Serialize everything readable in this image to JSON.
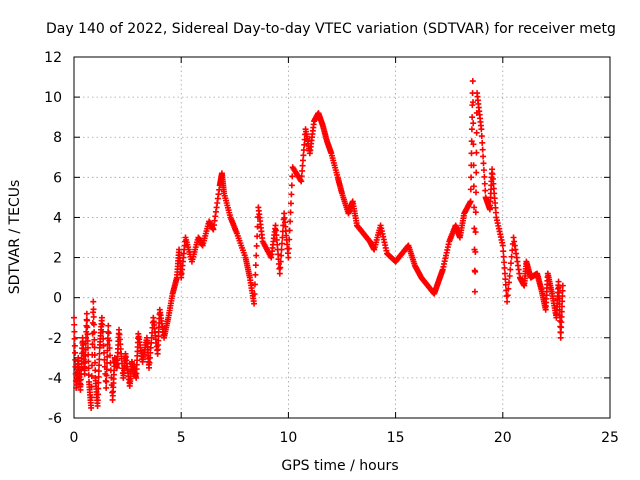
{
  "chart_data": {
    "type": "scatter",
    "title": "Day 140 of 2022, Sidereal Day-to-day VTEC variation (SDTVAR) for receiver metg",
    "xlabel": "GPS time / hours",
    "ylabel": "SDTVAR / TECUs",
    "xlim": [
      0,
      25
    ],
    "ylim": [
      -6,
      12
    ],
    "xticks": [
      0,
      5,
      10,
      15,
      20,
      25
    ],
    "yticks": [
      -6,
      -4,
      -2,
      0,
      2,
      4,
      6,
      8,
      10,
      12
    ],
    "grid": true,
    "marker": "+",
    "color": "#ff0000",
    "series": [
      {
        "name": "SDTVAR",
        "points": [
          [
            0.0,
            -1.0
          ],
          [
            0.1,
            -4.5
          ],
          [
            0.2,
            -3.0
          ],
          [
            0.3,
            -4.6
          ],
          [
            0.4,
            -2.0
          ],
          [
            0.5,
            -3.8
          ],
          [
            0.6,
            -0.8
          ],
          [
            0.7,
            -4.2
          ],
          [
            0.8,
            -5.5
          ],
          [
            0.9,
            -0.2
          ],
          [
            1.0,
            -4.0
          ],
          [
            1.1,
            -5.4
          ],
          [
            1.2,
            -2.5
          ],
          [
            1.3,
            -1.0
          ],
          [
            1.5,
            -4.5
          ],
          [
            1.6,
            -1.4
          ],
          [
            1.8,
            -5.1
          ],
          [
            1.9,
            -3.0
          ],
          [
            2.0,
            -3.5
          ],
          [
            2.1,
            -1.6
          ],
          [
            2.3,
            -4.0
          ],
          [
            2.4,
            -2.8
          ],
          [
            2.6,
            -4.4
          ],
          [
            2.7,
            -3.2
          ],
          [
            2.9,
            -4.0
          ],
          [
            3.0,
            -1.8
          ],
          [
            3.2,
            -3.2
          ],
          [
            3.4,
            -2.0
          ],
          [
            3.5,
            -3.5
          ],
          [
            3.7,
            -1.0
          ],
          [
            3.9,
            -2.8
          ],
          [
            4.0,
            -0.6
          ],
          [
            4.2,
            -2.0
          ],
          [
            4.4,
            -1.0
          ],
          [
            4.6,
            0.2
          ],
          [
            4.8,
            1.0
          ],
          [
            4.9,
            2.4
          ],
          [
            5.0,
            1.0
          ],
          [
            5.2,
            3.0
          ],
          [
            5.5,
            1.8
          ],
          [
            5.8,
            3.0
          ],
          [
            6.0,
            2.6
          ],
          [
            6.3,
            3.8
          ],
          [
            6.5,
            3.4
          ],
          [
            6.8,
            5.6
          ],
          [
            6.9,
            6.2
          ],
          [
            7.0,
            5.2
          ],
          [
            7.3,
            4.0
          ],
          [
            7.6,
            3.2
          ],
          [
            8.0,
            2.0
          ],
          [
            8.2,
            1.0
          ],
          [
            8.4,
            -0.3
          ],
          [
            8.6,
            4.5
          ],
          [
            8.8,
            2.8
          ],
          [
            9.2,
            2.0
          ],
          [
            9.4,
            3.6
          ],
          [
            9.6,
            1.2
          ],
          [
            9.8,
            4.2
          ],
          [
            10.0,
            2.0
          ],
          [
            10.2,
            6.5
          ],
          [
            10.6,
            5.8
          ],
          [
            10.8,
            8.4
          ],
          [
            11.0,
            7.2
          ],
          [
            11.2,
            8.8
          ],
          [
            11.4,
            9.2
          ],
          [
            11.6,
            8.6
          ],
          [
            11.8,
            7.8
          ],
          [
            12.0,
            7.2
          ],
          [
            12.3,
            6.0
          ],
          [
            12.5,
            5.2
          ],
          [
            12.8,
            4.2
          ],
          [
            13.0,
            4.8
          ],
          [
            13.2,
            3.6
          ],
          [
            13.5,
            3.2
          ],
          [
            13.8,
            2.8
          ],
          [
            14.0,
            2.4
          ],
          [
            14.3,
            3.6
          ],
          [
            14.6,
            2.2
          ],
          [
            15.0,
            1.8
          ],
          [
            15.3,
            2.2
          ],
          [
            15.6,
            2.6
          ],
          [
            15.9,
            1.6
          ],
          [
            16.2,
            1.0
          ],
          [
            16.5,
            0.6
          ],
          [
            16.8,
            0.2
          ],
          [
            17.0,
            0.8
          ],
          [
            17.2,
            1.4
          ],
          [
            17.5,
            2.8
          ],
          [
            17.8,
            3.6
          ],
          [
            18.0,
            3.0
          ],
          [
            18.2,
            4.2
          ],
          [
            18.5,
            4.8
          ],
          [
            18.6,
            10.8
          ],
          [
            18.7,
            0.3
          ],
          [
            18.8,
            10.2
          ],
          [
            19.0,
            8.4
          ],
          [
            19.2,
            5.0
          ],
          [
            19.4,
            4.4
          ],
          [
            19.5,
            6.4
          ],
          [
            19.7,
            4.0
          ],
          [
            20.0,
            2.6
          ],
          [
            20.2,
            -0.2
          ],
          [
            20.5,
            3.0
          ],
          [
            20.8,
            1.0
          ],
          [
            21.0,
            0.6
          ],
          [
            21.1,
            1.8
          ],
          [
            21.3,
            1.0
          ],
          [
            21.6,
            1.2
          ],
          [
            21.8,
            0.4
          ],
          [
            22.0,
            -0.6
          ],
          [
            22.1,
            1.2
          ],
          [
            22.3,
            0.2
          ],
          [
            22.5,
            -1.0
          ],
          [
            22.6,
            0.8
          ],
          [
            22.7,
            -2.0
          ],
          [
            22.8,
            0.6
          ]
        ]
      }
    ]
  }
}
